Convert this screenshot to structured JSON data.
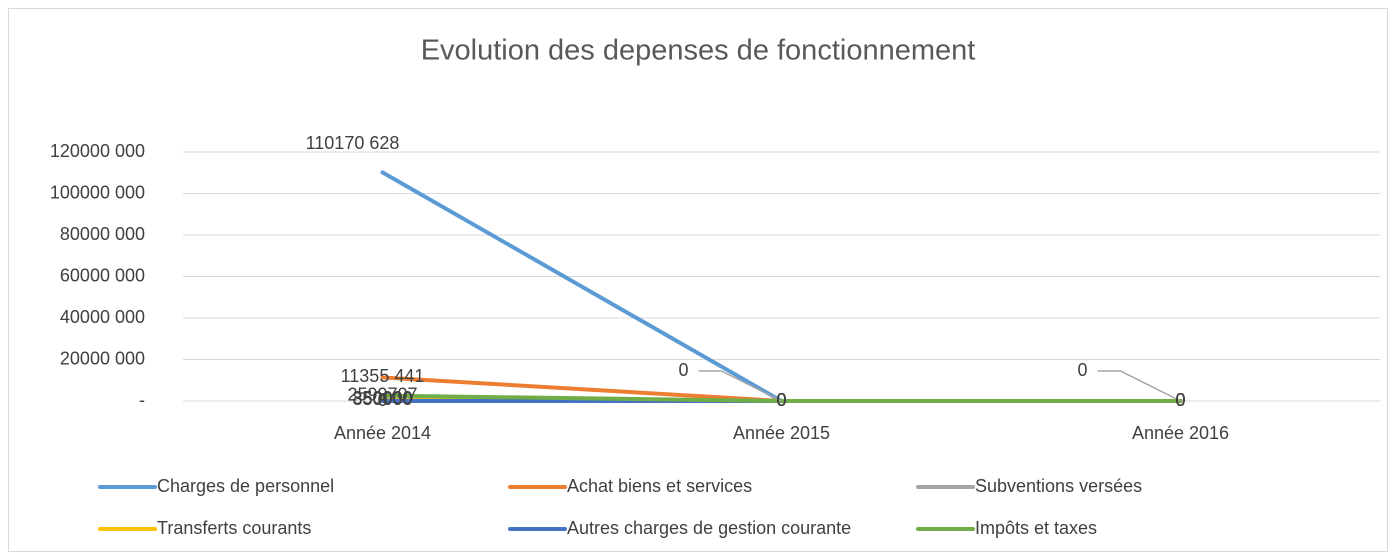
{
  "chart_data": {
    "type": "line",
    "title": "Evolution des depenses de fonctionnement",
    "categories": [
      "Année 2014",
      "Année 2015",
      "Année 2016"
    ],
    "series": [
      {
        "name": "Charges de personnel",
        "color": "#5b9bd5",
        "values": [
          110170628,
          0,
          0
        ],
        "value_labels": [
          "110170 628",
          "0",
          "0"
        ]
      },
      {
        "name": "Achat biens et services",
        "color": "#ed7d31",
        "values": [
          11355441,
          0,
          0
        ],
        "value_labels": [
          "11355 441",
          "0",
          "0"
        ]
      },
      {
        "name": "Subventions versées",
        "color": "#a5a5a5",
        "values": [
          850000,
          0,
          0
        ],
        "value_labels": [
          "850000",
          "0",
          "0"
        ]
      },
      {
        "name": "Transferts courants",
        "color": "#ffc000",
        "values": [
          350000,
          0,
          0
        ],
        "value_labels": [
          "350000",
          "0",
          "0"
        ]
      },
      {
        "name": "Autres charges de gestion courante",
        "color": "#4472c4",
        "values": [
          0,
          0,
          0
        ],
        "value_labels": [
          "0",
          "0",
          "0"
        ]
      },
      {
        "name": "Impôts et taxes",
        "color": "#70ad47",
        "values": [
          2599707,
          0,
          0
        ],
        "value_labels": [
          "2599707",
          "0",
          "0"
        ]
      }
    ],
    "ylim": [
      0,
      120000000
    ],
    "yticks": [
      {
        "value": 0,
        "label": "-"
      },
      {
        "value": 20000000,
        "label": "20000 000"
      },
      {
        "value": 40000000,
        "label": "40000 000"
      },
      {
        "value": 60000000,
        "label": "60000 000"
      },
      {
        "value": 80000000,
        "label": "80000 000"
      },
      {
        "value": 100000000,
        "label": "100000 000"
      },
      {
        "value": 120000000,
        "label": "120000 000"
      }
    ],
    "grid": true
  }
}
